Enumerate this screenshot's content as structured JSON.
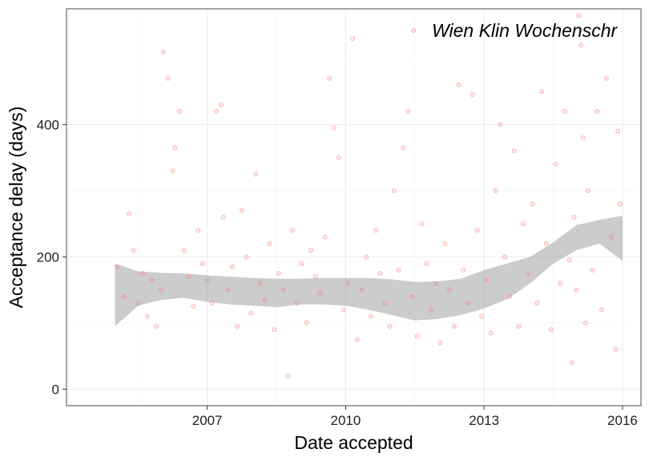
{
  "chart_data": {
    "type": "scatter",
    "title": "",
    "xlabel": "Date accepted",
    "ylabel": "Acceptance delay (days)",
    "x_ticks": [
      {
        "label": "2007",
        "value": 2007
      },
      {
        "label": "2010",
        "value": 2010
      },
      {
        "label": "2013",
        "value": 2013
      },
      {
        "label": "2016",
        "value": 2016
      }
    ],
    "y_ticks": [
      {
        "label": "0",
        "value": 0
      },
      {
        "label": "200",
        "value": 200
      },
      {
        "label": "400",
        "value": 400
      }
    ],
    "xlim": [
      2003.95,
      2016.4
    ],
    "ylim": [
      -25,
      575
    ],
    "grid": true,
    "legend_position": "top-right",
    "series": [
      {
        "name": "Wien Klin Wochenschr",
        "color": "#f8766d",
        "points": [
          [
            2005.05,
            185
          ],
          [
            2005.2,
            140
          ],
          [
            2005.3,
            265
          ],
          [
            2005.4,
            210
          ],
          [
            2005.5,
            130
          ],
          [
            2005.6,
            175
          ],
          [
            2005.7,
            110
          ],
          [
            2005.8,
            165
          ],
          [
            2005.9,
            95
          ],
          [
            2006.0,
            150
          ],
          [
            2006.05,
            510
          ],
          [
            2006.15,
            470
          ],
          [
            2006.25,
            330
          ],
          [
            2006.3,
            365
          ],
          [
            2006.4,
            420
          ],
          [
            2006.5,
            210
          ],
          [
            2006.6,
            170
          ],
          [
            2006.7,
            125
          ],
          [
            2006.8,
            240
          ],
          [
            2006.9,
            190
          ],
          [
            2007.0,
            165
          ],
          [
            2007.1,
            130
          ],
          [
            2007.2,
            420
          ],
          [
            2007.3,
            430
          ],
          [
            2007.35,
            260
          ],
          [
            2007.45,
            150
          ],
          [
            2007.55,
            185
          ],
          [
            2007.65,
            95
          ],
          [
            2007.75,
            270
          ],
          [
            2007.85,
            200
          ],
          [
            2007.95,
            115
          ],
          [
            2008.05,
            325
          ],
          [
            2008.15,
            160
          ],
          [
            2008.25,
            135
          ],
          [
            2008.35,
            220
          ],
          [
            2008.45,
            90
          ],
          [
            2008.55,
            175
          ],
          [
            2008.65,
            150
          ],
          [
            2008.75,
            20
          ],
          [
            2008.85,
            240
          ],
          [
            2008.95,
            130
          ],
          [
            2009.05,
            190
          ],
          [
            2009.15,
            100
          ],
          [
            2009.25,
            210
          ],
          [
            2009.35,
            170
          ],
          [
            2009.45,
            145
          ],
          [
            2009.55,
            230
          ],
          [
            2009.65,
            470
          ],
          [
            2009.75,
            395
          ],
          [
            2009.85,
            350
          ],
          [
            2009.95,
            120
          ],
          [
            2010.05,
            160
          ],
          [
            2010.15,
            530
          ],
          [
            2010.25,
            75
          ],
          [
            2010.35,
            150
          ],
          [
            2010.45,
            200
          ],
          [
            2010.55,
            110
          ],
          [
            2010.65,
            240
          ],
          [
            2010.75,
            175
          ],
          [
            2010.85,
            130
          ],
          [
            2010.95,
            95
          ],
          [
            2011.05,
            300
          ],
          [
            2011.15,
            180
          ],
          [
            2011.25,
            365
          ],
          [
            2011.35,
            420
          ],
          [
            2011.45,
            140
          ],
          [
            2011.55,
            80
          ],
          [
            2011.65,
            250
          ],
          [
            2011.75,
            190
          ],
          [
            2011.85,
            120
          ],
          [
            2011.95,
            160
          ],
          [
            2012.05,
            70
          ],
          [
            2012.15,
            220
          ],
          [
            2012.25,
            150
          ],
          [
            2012.35,
            95
          ],
          [
            2012.45,
            460
          ],
          [
            2012.55,
            180
          ],
          [
            2012.65,
            130
          ],
          [
            2012.75,
            445
          ],
          [
            2012.85,
            240
          ],
          [
            2012.95,
            110
          ],
          [
            2013.05,
            165
          ],
          [
            2013.15,
            85
          ],
          [
            2013.25,
            300
          ],
          [
            2013.35,
            400
          ],
          [
            2013.45,
            200
          ],
          [
            2013.55,
            140
          ],
          [
            2013.65,
            360
          ],
          [
            2013.75,
            95
          ],
          [
            2013.85,
            250
          ],
          [
            2013.95,
            175
          ],
          [
            2014.05,
            280
          ],
          [
            2014.15,
            130
          ],
          [
            2014.25,
            450
          ],
          [
            2014.35,
            220
          ],
          [
            2014.45,
            90
          ],
          [
            2014.55,
            340
          ],
          [
            2014.65,
            160
          ],
          [
            2014.75,
            420
          ],
          [
            2014.85,
            195
          ],
          [
            2014.9,
            40
          ],
          [
            2014.95,
            260
          ],
          [
            2015.0,
            150
          ],
          [
            2015.05,
            565
          ],
          [
            2015.1,
            520
          ],
          [
            2015.15,
            380
          ],
          [
            2015.2,
            100
          ],
          [
            2015.25,
            300
          ],
          [
            2015.35,
            180
          ],
          [
            2015.45,
            420
          ],
          [
            2015.55,
            120
          ],
          [
            2015.65,
            470
          ],
          [
            2015.75,
            230
          ],
          [
            2015.85,
            60
          ],
          [
            2015.9,
            390
          ],
          [
            2015.95,
            280
          ]
        ]
      }
    ],
    "smooth_band": {
      "x": [
        2005.0,
        2005.5,
        2006.0,
        2006.5,
        2007.0,
        2007.5,
        2008.0,
        2008.5,
        2009.0,
        2009.5,
        2010.0,
        2010.5,
        2011.0,
        2011.5,
        2012.0,
        2012.5,
        2013.0,
        2013.5,
        2014.0,
        2014.5,
        2015.0,
        2015.5,
        2016.0
      ],
      "upper": [
        190,
        178,
        176,
        175,
        172,
        170,
        168,
        167,
        167,
        168,
        168,
        168,
        166,
        162,
        163,
        167,
        180,
        190,
        200,
        222,
        248,
        256,
        262
      ],
      "lower": [
        95,
        126,
        135,
        138,
        132,
        128,
        126,
        124,
        128,
        128,
        126,
        120,
        112,
        104,
        106,
        112,
        122,
        136,
        160,
        190,
        210,
        220,
        194
      ]
    }
  }
}
